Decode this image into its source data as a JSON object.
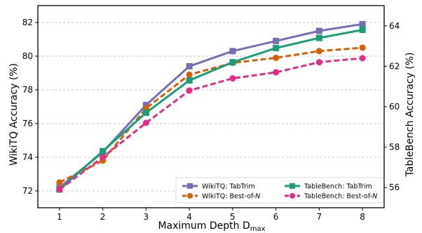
{
  "chart_data": {
    "type": "line",
    "x": [
      1,
      2,
      3,
      4,
      5,
      6,
      7,
      8
    ],
    "xlabel": "Maximum Depth D",
    "xlabel_sub": "max",
    "xlim": [
      0.5,
      8.5
    ],
    "ylabel_left": "WikiTQ Accuracy (%)",
    "ylim_left": [
      71,
      83
    ],
    "yticks_left": [
      72,
      74,
      76,
      78,
      80,
      82
    ],
    "ylabel_right": "TableBench Accuracy (%)",
    "ylim_right": [
      55,
      65
    ],
    "yticks_right": [
      56,
      58,
      60,
      62,
      64
    ],
    "grid": "horizontal dashed",
    "legend_position": "lower-right",
    "series": [
      {
        "name": "WikiTQ: TabTrim",
        "axis": "left",
        "color": "#7570b3",
        "marker": "square",
        "dashed": false,
        "values": [
          72.2,
          74.3,
          77.1,
          79.4,
          80.3,
          80.9,
          81.5,
          81.9
        ]
      },
      {
        "name": "WikiTQ: Best-of-",
        "name_italic": "N",
        "axis": "left",
        "color": "#d95f02",
        "marker": "circle",
        "dashed": true,
        "values": [
          72.5,
          73.8,
          76.9,
          78.9,
          79.6,
          79.9,
          80.3,
          80.5
        ]
      },
      {
        "name": "TableBench: TabTrim",
        "axis": "right",
        "color": "#1b9e77",
        "marker": "square",
        "dashed": false,
        "values": [
          55.9,
          57.8,
          59.7,
          61.3,
          62.2,
          62.9,
          63.4,
          63.8
        ]
      },
      {
        "name": "TableBench: Best-of-",
        "name_italic": "N",
        "axis": "right",
        "color": "#e7298a",
        "marker": "circle",
        "dashed": true,
        "values": [
          55.9,
          57.5,
          59.2,
          60.8,
          61.4,
          61.7,
          62.2,
          62.4
        ]
      }
    ]
  }
}
